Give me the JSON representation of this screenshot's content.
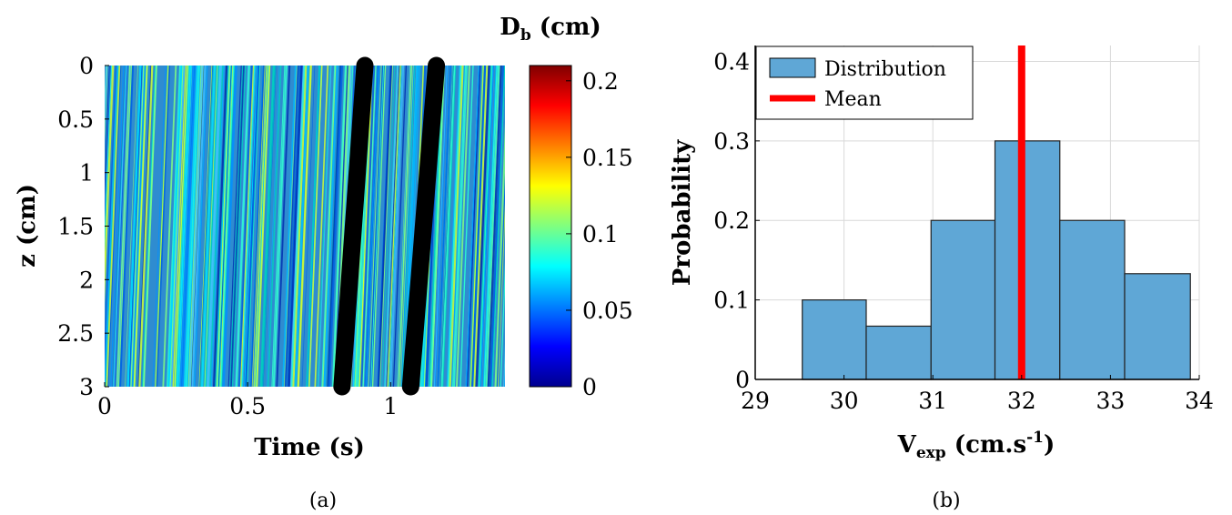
{
  "chart_data": [
    {
      "type": "heatmap",
      "panel_label": "(a)",
      "xlabel": "Time (s)",
      "ylabel": "z (cm)",
      "xlim": [
        0,
        1.4
      ],
      "ylim": [
        0,
        3
      ],
      "y_reversed": true,
      "x_ticks": [
        "0",
        "0.5",
        "1"
      ],
      "y_ticks": [
        "0",
        "0.5",
        "1",
        "1.5",
        "2",
        "2.5",
        "3"
      ],
      "colorbar": {
        "title_main": "D",
        "title_sub": "b",
        "title_unit": "(cm)",
        "range": [
          0,
          0.21
        ],
        "colormap": "jet",
        "ticks": [
          "0",
          "0.05",
          "0.1",
          "0.15",
          "0.2"
        ]
      },
      "overlay_lines": [
        {
          "color": "#000000",
          "points": [
            {
              "t": 0.91,
              "z": 0
            },
            {
              "t": 0.83,
              "z": 3
            }
          ]
        },
        {
          "color": "#000000",
          "points": [
            {
              "t": 1.16,
              "z": 0
            },
            {
              "t": 1.07,
              "z": 3
            }
          ]
        }
      ]
    },
    {
      "type": "bar",
      "panel_label": "(b)",
      "xlabel_main": "V",
      "xlabel_sub": "exp",
      "xlabel_unit": "(cm.s",
      "xlabel_sup": "-1",
      "xlabel_close": ")",
      "ylabel": "Probability",
      "xlim": [
        29,
        34
      ],
      "ylim": [
        0,
        0.42
      ],
      "x_ticks": [
        "29",
        "30",
        "31",
        "32",
        "33",
        "34"
      ],
      "y_ticks": [
        "0",
        "0.1",
        "0.2",
        "0.3",
        "0.4"
      ],
      "bins": [
        {
          "left": 29.53,
          "right": 30.25,
          "value": 0.1
        },
        {
          "left": 30.25,
          "right": 30.98,
          "value": 0.067
        },
        {
          "left": 30.98,
          "right": 31.7,
          "value": 0.2
        },
        {
          "left": 31.7,
          "right": 32.43,
          "value": 0.3
        },
        {
          "left": 32.43,
          "right": 33.16,
          "value": 0.2
        },
        {
          "left": 33.16,
          "right": 33.9,
          "value": 0.133
        }
      ],
      "mean": 32.0,
      "bar_color": "#5fa7d6",
      "mean_color": "#ff0000",
      "legend": [
        "Distribution",
        "Mean"
      ],
      "legend_position": "top-left"
    }
  ]
}
